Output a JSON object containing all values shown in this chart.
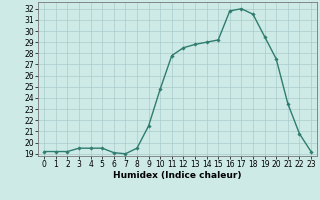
{
  "x": [
    0,
    1,
    2,
    3,
    4,
    5,
    6,
    7,
    8,
    9,
    10,
    11,
    12,
    13,
    14,
    15,
    16,
    17,
    18,
    19,
    20,
    21,
    22,
    23
  ],
  "y": [
    19.2,
    19.2,
    19.2,
    19.5,
    19.5,
    19.5,
    19.1,
    19.0,
    19.5,
    21.5,
    24.8,
    27.8,
    28.5,
    28.8,
    29.0,
    29.2,
    31.8,
    32.0,
    31.5,
    29.5,
    27.5,
    23.5,
    20.8,
    19.2
  ],
  "line_color": "#2e7d6e",
  "marker": "D",
  "marker_size": 1.8,
  "bg_color": "#ceeae6",
  "grid_color": "#aacccc",
  "xlabel": "Humidex (Indice chaleur)",
  "ylim": [
    18.8,
    32.6
  ],
  "xlim": [
    -0.5,
    23.5
  ],
  "yticks": [
    19,
    20,
    21,
    22,
    23,
    24,
    25,
    26,
    27,
    28,
    29,
    30,
    31,
    32
  ],
  "xticks": [
    0,
    1,
    2,
    3,
    4,
    5,
    6,
    7,
    8,
    9,
    10,
    11,
    12,
    13,
    14,
    15,
    16,
    17,
    18,
    19,
    20,
    21,
    22,
    23
  ],
  "xlabel_fontsize": 6.5,
  "tick_fontsize": 5.5,
  "linewidth": 1.0
}
